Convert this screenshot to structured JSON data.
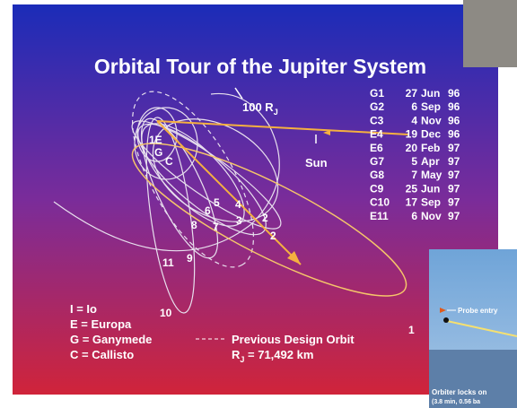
{
  "title": "Orbital Tour of the Jupiter System",
  "distance_label": {
    "text": "100 R",
    "sub": "J"
  },
  "sun_label": "Sun",
  "encounters": [
    {
      "orbit": "G1",
      "day": "27",
      "month": "Jun",
      "year": "96"
    },
    {
      "orbit": "G2",
      "day": "6",
      "month": "Sep",
      "year": "96"
    },
    {
      "orbit": "C3",
      "day": "4",
      "month": "Nov",
      "year": "96"
    },
    {
      "orbit": "E4",
      "day": "19",
      "month": "Dec",
      "year": "96"
    },
    {
      "orbit": "E6",
      "day": "20",
      "month": "Feb",
      "year": "97"
    },
    {
      "orbit": "G7",
      "day": "5",
      "month": "Apr",
      "year": "97"
    },
    {
      "orbit": "G8",
      "day": "7",
      "month": "May",
      "year": "97"
    },
    {
      "orbit": "C9",
      "day": "25",
      "month": "Jun",
      "year": "97"
    },
    {
      "orbit": "C10",
      "day": "17",
      "month": "Sep",
      "year": "97"
    },
    {
      "orbit": "E11",
      "day": "6",
      "month": "Nov",
      "year": "97"
    }
  ],
  "orbit_labels": [
    "1E",
    "G",
    "C",
    "5",
    "4",
    "6",
    "3",
    "2",
    "2",
    "8",
    "7",
    "11",
    "9",
    "10",
    "1"
  ],
  "key": [
    "I = Io",
    "E = Europa",
    "G = Ganymede",
    "C = Callisto"
  ],
  "previous_orbit": "Previous Design Orbit",
  "radius": {
    "symbol": "R",
    "sub": "J",
    "text": " = 71,492 km"
  },
  "inset": {
    "probe": "Probe entry",
    "orbiter": "Orbiter locks on",
    "detail": "(3.8 min, 0.56 ba"
  }
}
